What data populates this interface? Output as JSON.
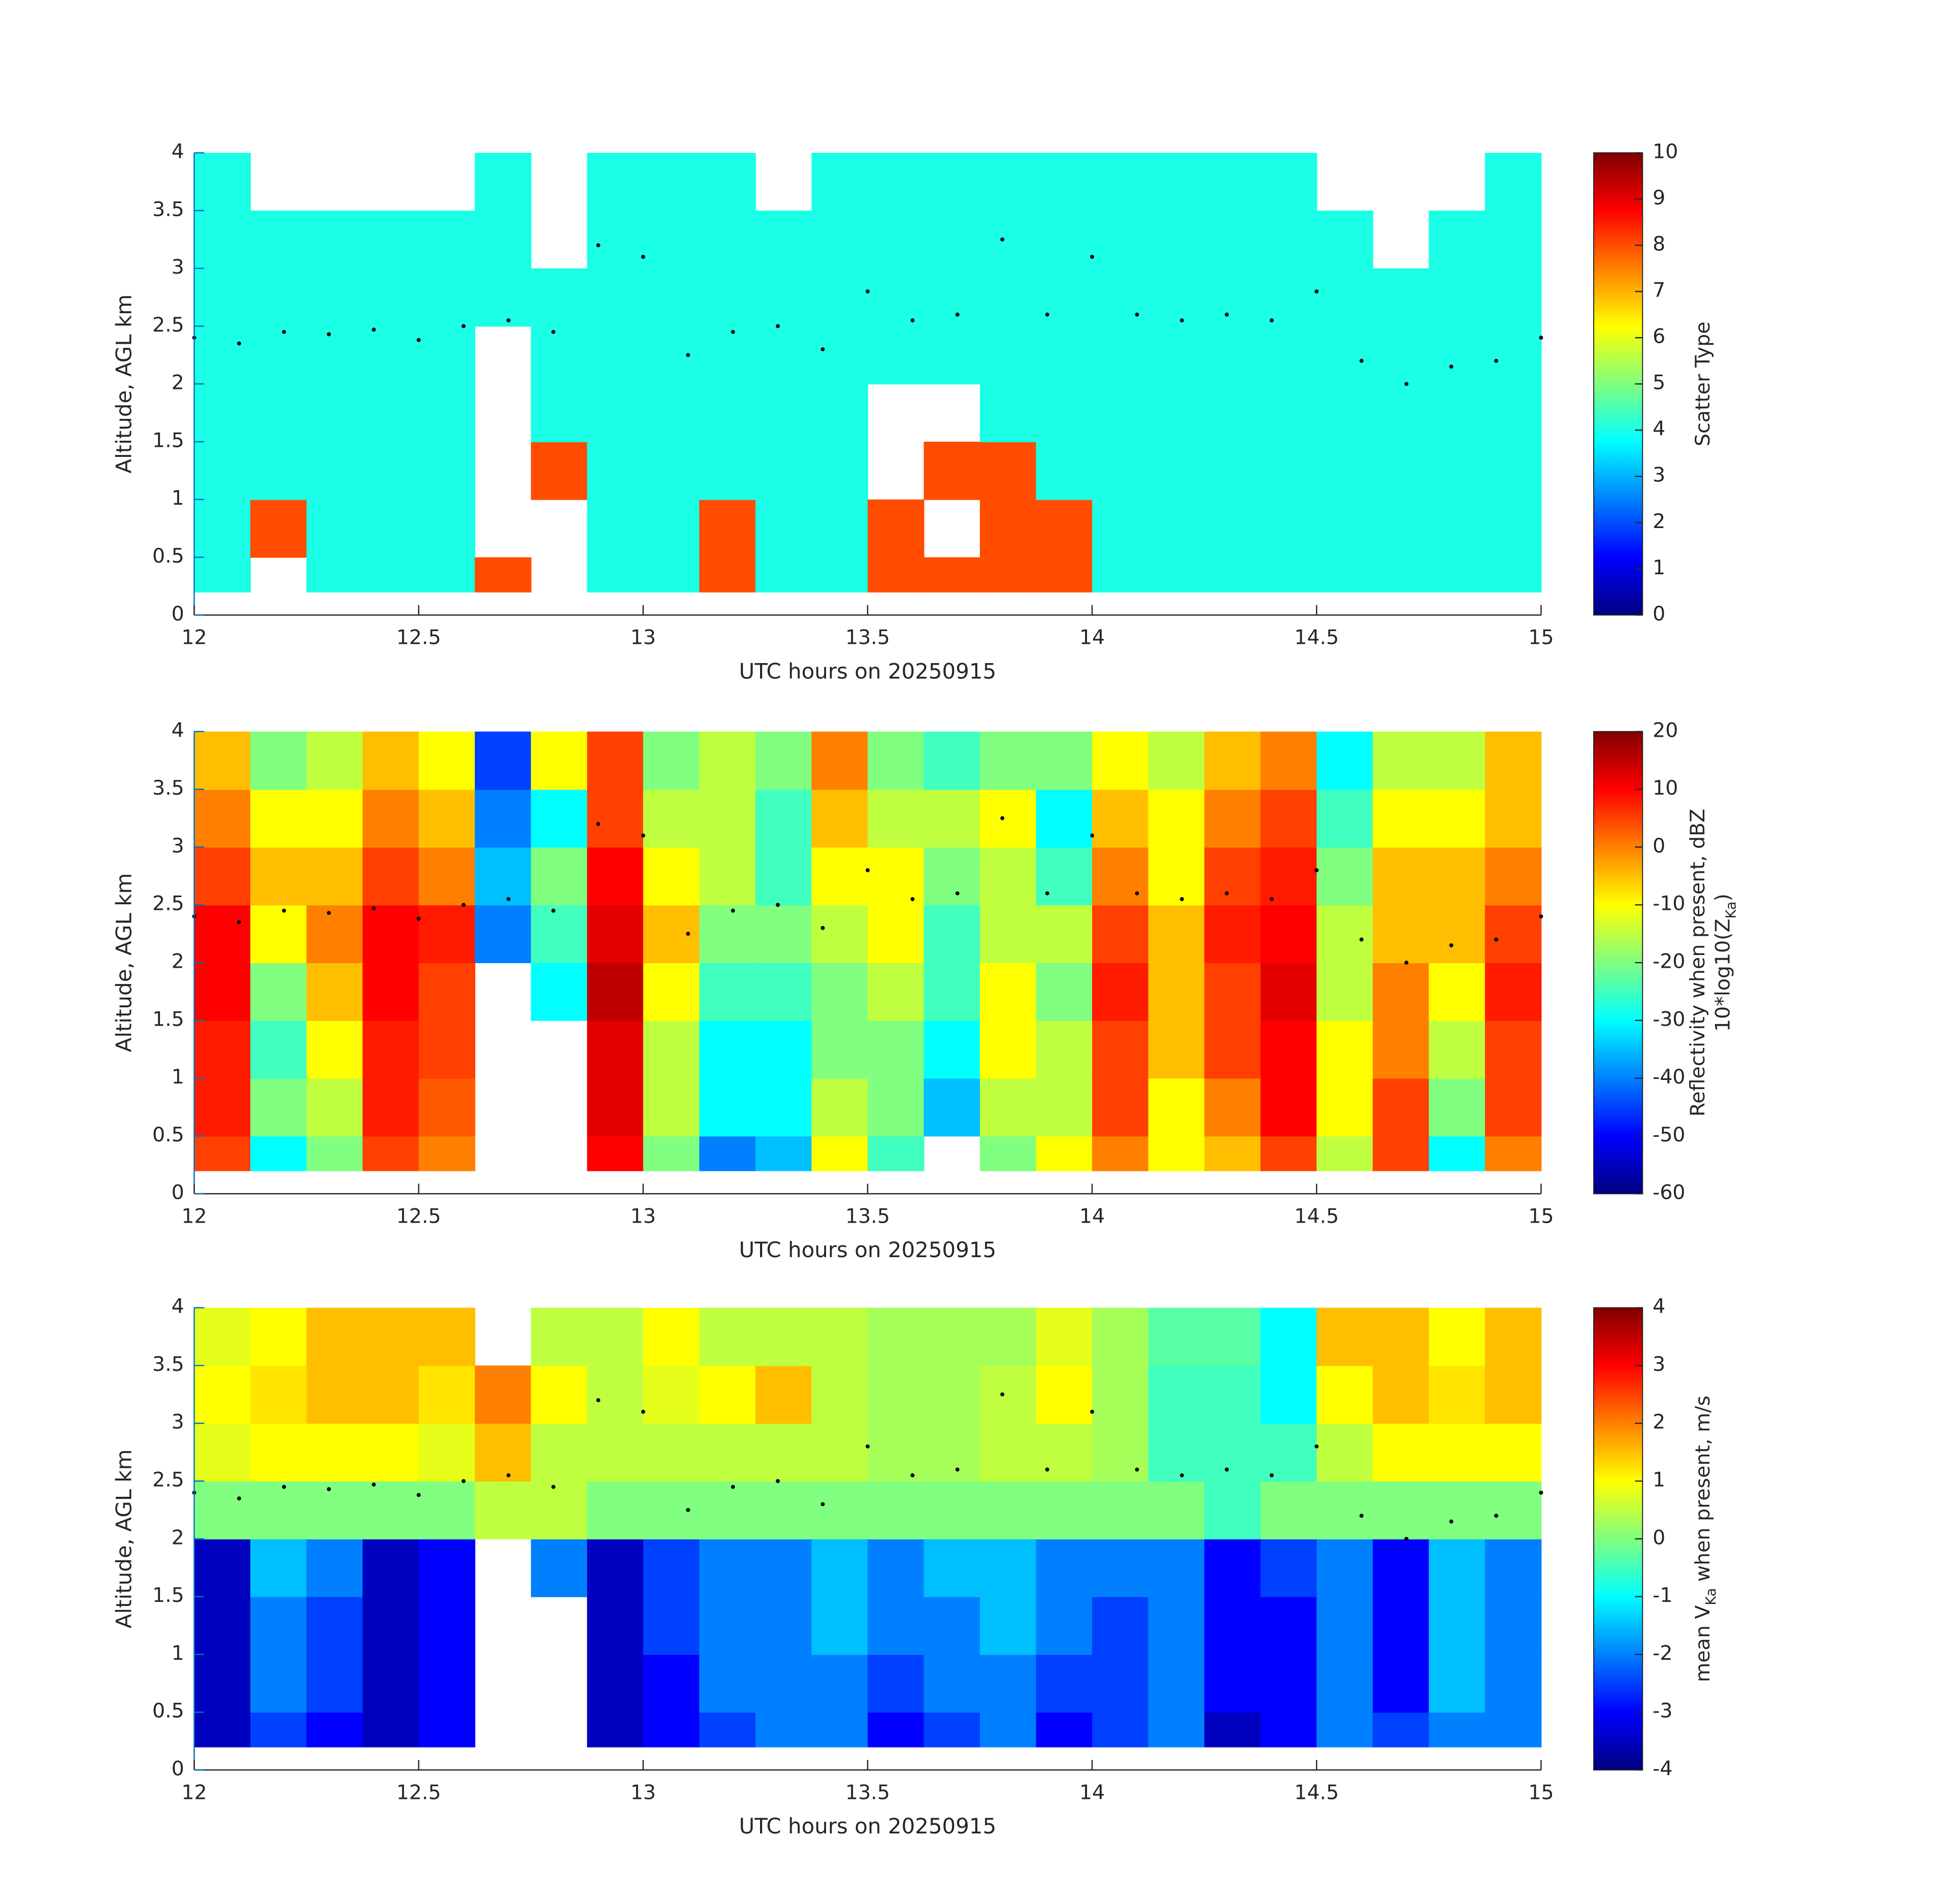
{
  "chart_data": [
    {
      "type": "heatmap",
      "colormap": "jet",
      "xlabel": "UTC hours on 20250915",
      "ylabel": "Altitude, AGL km",
      "y_axis_color": "#0072bd",
      "xlim": [
        12,
        15
      ],
      "ylim": [
        0,
        4
      ],
      "xticks": [
        12,
        12.5,
        13,
        13.5,
        14,
        14.5,
        15
      ],
      "yticks": [
        0,
        0.5,
        1,
        1.5,
        2,
        2.5,
        3,
        3.5,
        4
      ],
      "clim": [
        0,
        10
      ],
      "cticks": [
        0,
        1,
        2,
        3,
        4,
        5,
        6,
        7,
        8,
        9,
        10
      ],
      "colorbar_label": [
        [
          {
            "text": "Scatter Type"
          }
        ]
      ],
      "x_edges": [
        12,
        12.125,
        12.25,
        12.375,
        12.5,
        12.625,
        12.75,
        12.875,
        13,
        13.125,
        13.25,
        13.375,
        13.5,
        13.625,
        13.75,
        13.875,
        14,
        14.125,
        14.25,
        14.375,
        14.5,
        14.625,
        14.75,
        14.875,
        15
      ],
      "y_edges": [
        0.2,
        0.5,
        1,
        1.5,
        2,
        2.5,
        3,
        3.5,
        4
      ],
      "values": [
        [
          4,
          4,
          4,
          4,
          4,
          4,
          4,
          4
        ],
        [
          null,
          8,
          4,
          4,
          4,
          4,
          4,
          null
        ],
        [
          4,
          4,
          4,
          4,
          4,
          4,
          4,
          null
        ],
        [
          4,
          4,
          4,
          4,
          4,
          4,
          4,
          null
        ],
        [
          4,
          4,
          4,
          4,
          4,
          4,
          4,
          null
        ],
        [
          8,
          null,
          null,
          null,
          null,
          4,
          4,
          4
        ],
        [
          null,
          null,
          8,
          4,
          4,
          4,
          null,
          null
        ],
        [
          4,
          4,
          4,
          4,
          4,
          4,
          4,
          4
        ],
        [
          4,
          4,
          4,
          4,
          4,
          4,
          4,
          4
        ],
        [
          8,
          8,
          4,
          4,
          4,
          4,
          4,
          4
        ],
        [
          4,
          4,
          4,
          4,
          4,
          4,
          4,
          null
        ],
        [
          4,
          4,
          4,
          4,
          4,
          4,
          4,
          4
        ],
        [
          8,
          8,
          null,
          null,
          4,
          4,
          4,
          4
        ],
        [
          8,
          null,
          8,
          null,
          4,
          4,
          4,
          4
        ],
        [
          8,
          8,
          8,
          4,
          4,
          4,
          4,
          4
        ],
        [
          8,
          8,
          4,
          4,
          4,
          4,
          4,
          4
        ],
        [
          4,
          4,
          4,
          4,
          4,
          4,
          4,
          4
        ],
        [
          4,
          4,
          4,
          4,
          4,
          4,
          4,
          4
        ],
        [
          4,
          4,
          4,
          4,
          4,
          4,
          4,
          4
        ],
        [
          4,
          4,
          4,
          4,
          4,
          4,
          4,
          4
        ],
        [
          4,
          4,
          4,
          4,
          4,
          4,
          4,
          null
        ],
        [
          4,
          4,
          4,
          4,
          4,
          4,
          null,
          null
        ],
        [
          4,
          4,
          4,
          4,
          4,
          4,
          4,
          null
        ],
        [
          4,
          4,
          4,
          4,
          4,
          4,
          4,
          4
        ]
      ],
      "points": {
        "x": [
          12,
          12.1,
          12.2,
          12.3,
          12.4,
          12.5,
          12.6,
          12.7,
          12.8,
          12.9,
          13,
          13.1,
          13.2,
          13.3,
          13.4,
          13.5,
          13.6,
          13.7,
          13.8,
          13.9,
          14,
          14.1,
          14.2,
          14.3,
          14.4,
          14.5,
          14.6,
          14.7,
          14.8,
          14.9,
          15
        ],
        "y": [
          2.4,
          2.35,
          2.45,
          2.43,
          2.47,
          2.38,
          2.5,
          2.55,
          2.45,
          3.2,
          3.1,
          2.25,
          2.45,
          2.5,
          2.3,
          2.8,
          2.55,
          2.6,
          3.25,
          2.6,
          3.1,
          2.6,
          2.55,
          2.6,
          2.55,
          2.8,
          2.2,
          2.0,
          2.15,
          2.2,
          2.4
        ]
      }
    },
    {
      "type": "heatmap",
      "colormap": "jet",
      "xlabel": "UTC hours on 20250915",
      "ylabel": "Altitude, AGL km",
      "y_axis_color": "#0072bd",
      "xlim": [
        12,
        15
      ],
      "ylim": [
        0,
        4
      ],
      "xticks": [
        12,
        12.5,
        13,
        13.5,
        14,
        14.5,
        15
      ],
      "yticks": [
        0,
        0.5,
        1,
        1.5,
        2,
        2.5,
        3,
        3.5,
        4
      ],
      "clim": [
        -60,
        20
      ],
      "cticks": [
        -60,
        -50,
        -40,
        -30,
        -20,
        -10,
        0,
        10,
        20
      ],
      "colorbar_label": [
        [
          {
            "text": "Reflectivity when present, dBZ"
          }
        ],
        [
          {
            "text": "10*log10(Z"
          },
          {
            "text": "Ka",
            "sub": true
          },
          {
            "text": ")"
          }
        ]
      ],
      "x_edges": [
        12,
        12.125,
        12.25,
        12.375,
        12.5,
        12.625,
        12.75,
        12.875,
        13,
        13.125,
        13.25,
        13.375,
        13.5,
        13.625,
        13.75,
        13.875,
        14,
        14.125,
        14.25,
        14.375,
        14.5,
        14.625,
        14.75,
        14.875,
        15
      ],
      "y_edges": [
        0.2,
        0.5,
        1,
        1.5,
        2,
        2.5,
        3,
        3.5,
        4
      ],
      "values": [
        [
          5,
          8,
          8,
          10,
          10,
          5,
          0,
          -5
        ],
        [
          -30,
          -20,
          -25,
          -20,
          -10,
          -5,
          -10,
          -20
        ],
        [
          -20,
          -15,
          -10,
          -5,
          0,
          -5,
          -10,
          -15
        ],
        [
          5,
          8,
          8,
          10,
          10,
          5,
          0,
          -5
        ],
        [
          0,
          3,
          5,
          5,
          8,
          0,
          -5,
          -10
        ],
        [
          null,
          null,
          null,
          null,
          -40,
          -35,
          -40,
          -45
        ],
        [
          null,
          null,
          null,
          -30,
          -25,
          -20,
          -30,
          -10
        ],
        [
          10,
          12,
          12,
          15,
          12,
          10,
          5,
          5
        ],
        [
          -20,
          -15,
          -15,
          -10,
          -5,
          -10,
          -15,
          -20
        ],
        [
          -40,
          -30,
          -30,
          -25,
          -20,
          -15,
          -15,
          -15
        ],
        [
          -35,
          -30,
          -30,
          -25,
          -20,
          -25,
          -25,
          -20
        ],
        [
          -10,
          -15,
          -20,
          -20,
          -15,
          -10,
          -5,
          0
        ],
        [
          -25,
          -20,
          -20,
          -15,
          -10,
          -10,
          -15,
          -20
        ],
        [
          null,
          -35,
          -30,
          -25,
          -25,
          -20,
          -15,
          -25
        ],
        [
          -20,
          -15,
          -10,
          -10,
          -15,
          -15,
          -10,
          -20
        ],
        [
          -10,
          -15,
          -15,
          -20,
          -15,
          -25,
          -30,
          -20
        ],
        [
          0,
          5,
          5,
          8,
          5,
          0,
          -5,
          -10
        ],
        [
          -10,
          -10,
          -5,
          -5,
          -5,
          -10,
          -10,
          -15
        ],
        [
          -5,
          0,
          5,
          5,
          8,
          5,
          0,
          -5
        ],
        [
          5,
          10,
          10,
          12,
          10,
          8,
          5,
          0
        ],
        [
          -15,
          -10,
          -10,
          -15,
          -15,
          -20,
          -25,
          -30
        ],
        [
          5,
          5,
          0,
          0,
          -5,
          -5,
          -10,
          -15
        ],
        [
          -30,
          -20,
          -15,
          -10,
          -5,
          -5,
          -10,
          -15
        ],
        [
          0,
          5,
          5,
          8,
          5,
          0,
          -5,
          -5
        ]
      ],
      "points": {
        "x": [
          12,
          12.1,
          12.2,
          12.3,
          12.4,
          12.5,
          12.6,
          12.7,
          12.8,
          12.9,
          13,
          13.1,
          13.2,
          13.3,
          13.4,
          13.5,
          13.6,
          13.7,
          13.8,
          13.9,
          14,
          14.1,
          14.2,
          14.3,
          14.4,
          14.5,
          14.6,
          14.7,
          14.8,
          14.9,
          15
        ],
        "y": [
          2.4,
          2.35,
          2.45,
          2.43,
          2.47,
          2.38,
          2.5,
          2.55,
          2.45,
          3.2,
          3.1,
          2.25,
          2.45,
          2.5,
          2.3,
          2.8,
          2.55,
          2.6,
          3.25,
          2.6,
          3.1,
          2.6,
          2.55,
          2.6,
          2.55,
          2.8,
          2.2,
          2.0,
          2.15,
          2.2,
          2.4
        ]
      }
    },
    {
      "type": "heatmap",
      "colormap": "jet",
      "xlabel": "UTC hours on 20250915",
      "ylabel": "Altitude, AGL km",
      "y_axis_color": "#0072bd",
      "xlim": [
        12,
        15
      ],
      "ylim": [
        0,
        4
      ],
      "xticks": [
        12,
        12.5,
        13,
        13.5,
        14,
        14.5,
        15
      ],
      "yticks": [
        0,
        0.5,
        1,
        1.5,
        2,
        2.5,
        3,
        3.5,
        4
      ],
      "clim": [
        -4,
        4
      ],
      "cticks": [
        -4,
        -3,
        -2,
        -1,
        0,
        1,
        2,
        3,
        4
      ],
      "colorbar_label": [
        [
          {
            "text": "mean V"
          },
          {
            "text": "Ka",
            "sub": true
          },
          {
            "text": " when present, m/s"
          }
        ]
      ],
      "x_edges": [
        12,
        12.125,
        12.25,
        12.375,
        12.5,
        12.625,
        12.75,
        12.875,
        13,
        13.125,
        13.25,
        13.375,
        13.5,
        13.625,
        13.75,
        13.875,
        14,
        14.125,
        14.25,
        14.375,
        14.5,
        14.625,
        14.75,
        14.875,
        15
      ],
      "y_edges": [
        0.2,
        0.5,
        1,
        1.5,
        2,
        2.5,
        3,
        3.5,
        4
      ],
      "values": [
        [
          -3.5,
          -3.5,
          -3.5,
          -3.5,
          0,
          0.8,
          1,
          0.8
        ],
        [
          -2.5,
          -2,
          -2,
          -1.5,
          0,
          1,
          1.2,
          1
        ],
        [
          -3,
          -2.5,
          -2.5,
          -2,
          0,
          1,
          1.5,
          1.5
        ],
        [
          -3.5,
          -3.5,
          -3.5,
          -3.5,
          0,
          1,
          1.5,
          1.5
        ],
        [
          -3,
          -3,
          -3,
          -3,
          0,
          0.8,
          1.2,
          1.5
        ],
        [
          null,
          null,
          null,
          null,
          0.5,
          1.5,
          2,
          null
        ],
        [
          null,
          null,
          null,
          -2,
          0.5,
          0.5,
          1,
          0.5
        ],
        [
          -3.5,
          -3.5,
          -3.5,
          -3.5,
          0,
          0.5,
          0.5,
          0.5
        ],
        [
          -3,
          -3,
          -2.5,
          -2.5,
          0,
          0.5,
          0.8,
          1
        ],
        [
          -2.5,
          -2,
          -2,
          -2,
          0,
          0.5,
          1,
          0.5
        ],
        [
          -2,
          -2,
          -2,
          -2,
          0,
          0.5,
          1.5,
          0.5
        ],
        [
          -2,
          -2,
          -1.5,
          -1.5,
          0,
          0.5,
          0.5,
          0.5
        ],
        [
          -3,
          -2.5,
          -2,
          -2,
          0,
          0.3,
          0.3,
          0.3
        ],
        [
          -2.5,
          -2,
          -2,
          -1.5,
          0,
          0.3,
          0.3,
          0.3
        ],
        [
          -2,
          -2,
          -1.5,
          -1.5,
          0,
          0.5,
          0.5,
          0.3
        ],
        [
          -3,
          -2.5,
          -2,
          -2,
          0,
          0.5,
          1,
          0.8
        ],
        [
          -2.5,
          -2.5,
          -2.5,
          -2,
          0,
          0.3,
          0.3,
          0.3
        ],
        [
          -2,
          -2,
          -2,
          -2,
          0,
          -0.5,
          -0.5,
          -0.3
        ],
        [
          -3.5,
          -3,
          -3,
          -3,
          -0.5,
          -0.5,
          -0.5,
          -0.3
        ],
        [
          -3,
          -3,
          -3,
          -2.5,
          0,
          -0.5,
          -1,
          -1
        ],
        [
          -2,
          -2,
          -2,
          -2,
          0,
          0.5,
          1,
          1.5
        ],
        [
          -2.5,
          -3,
          -3,
          -3,
          0,
          1,
          1.5,
          1.5
        ],
        [
          -2,
          -1.5,
          -1.5,
          -1.5,
          0,
          1,
          1.2,
          1
        ],
        [
          -2,
          -2,
          -2,
          -2,
          0,
          1,
          1.5,
          1.5
        ]
      ],
      "points": {
        "x": [
          12,
          12.1,
          12.2,
          12.3,
          12.4,
          12.5,
          12.6,
          12.7,
          12.8,
          12.9,
          13,
          13.1,
          13.2,
          13.3,
          13.4,
          13.5,
          13.6,
          13.7,
          13.8,
          13.9,
          14,
          14.1,
          14.2,
          14.3,
          14.4,
          14.5,
          14.6,
          14.7,
          14.8,
          14.9,
          15
        ],
        "y": [
          2.4,
          2.35,
          2.45,
          2.43,
          2.47,
          2.38,
          2.5,
          2.55,
          2.45,
          3.2,
          3.1,
          2.25,
          2.45,
          2.5,
          2.3,
          2.8,
          2.55,
          2.6,
          3.25,
          2.6,
          3.1,
          2.6,
          2.55,
          2.6,
          2.55,
          2.8,
          2.2,
          2.0,
          2.15,
          2.2,
          2.4
        ]
      }
    }
  ]
}
